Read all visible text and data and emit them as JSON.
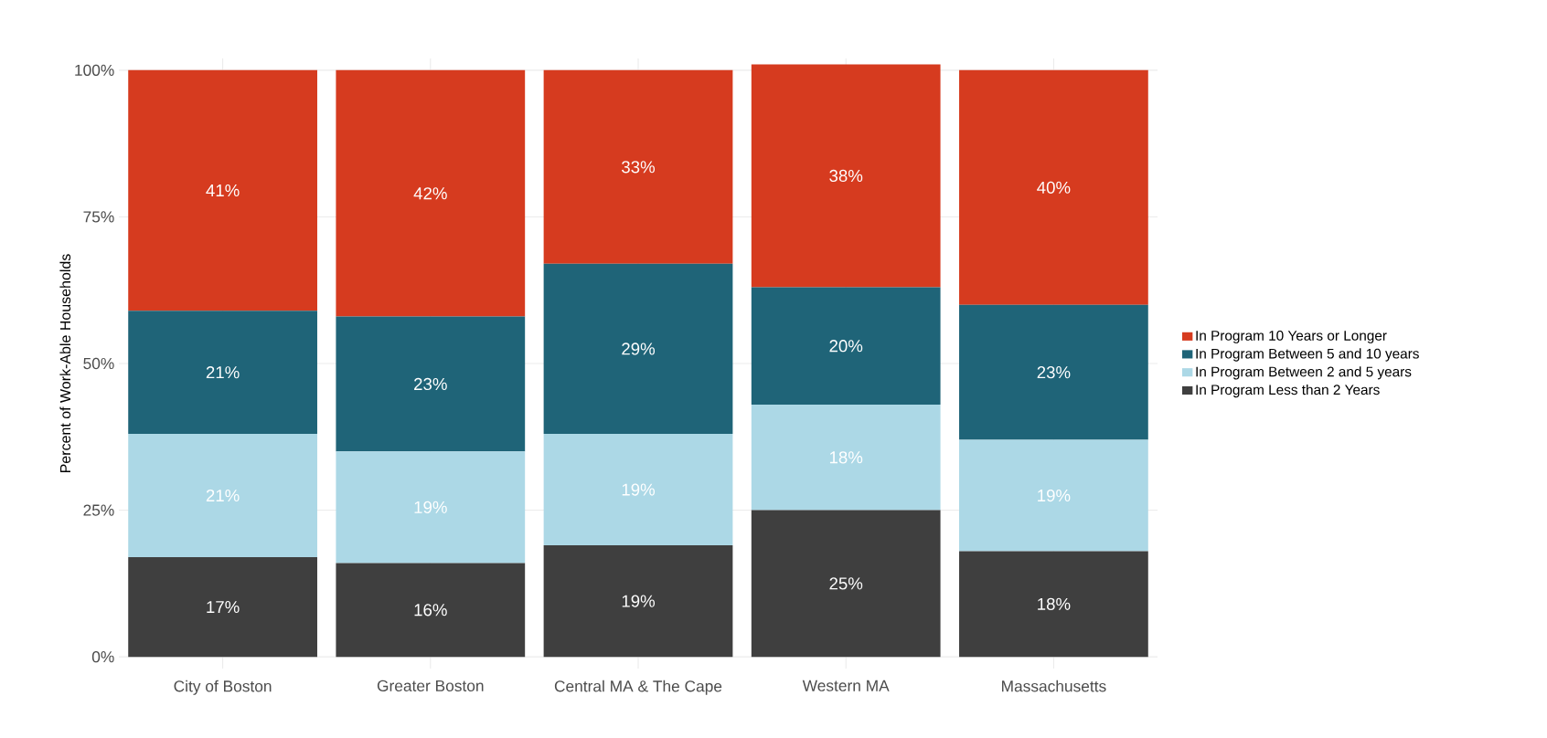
{
  "chart_data": {
    "type": "bar",
    "stacked": true,
    "ylabel": "Percent of Work-Able Households",
    "categories": [
      "City of Boston",
      "Greater Boston",
      "Central MA & The Cape",
      "Western MA",
      "Massachusetts"
    ],
    "series": [
      {
        "name": "In Program Less than 2 Years",
        "color": "#3f3f3f",
        "values": [
          17,
          16,
          19,
          25,
          18
        ],
        "value_labels": [
          "17%",
          "16%",
          "19%",
          "25%",
          "18%"
        ]
      },
      {
        "name": "In Program Between 2 and 5 years",
        "color": "#acd8e6",
        "values": [
          21,
          19,
          19,
          18,
          19
        ],
        "value_labels": [
          "21%",
          "19%",
          "19%",
          "18%",
          "19%"
        ]
      },
      {
        "name": "In Program Between 5 and 10 years",
        "color": "#1f6478",
        "values": [
          21,
          23,
          29,
          20,
          23
        ],
        "value_labels": [
          "21%",
          "23%",
          "29%",
          "20%",
          "23%"
        ]
      },
      {
        "name": "In Program 10 Years or Longer",
        "color": "#d63b1f",
        "values": [
          41,
          42,
          33,
          38,
          40
        ],
        "value_labels": [
          "41%",
          "42%",
          "33%",
          "38%",
          "40%"
        ]
      }
    ],
    "ylim": [
      -2,
      102
    ],
    "yticks": [
      {
        "value": 0,
        "label": "0%"
      },
      {
        "value": 25,
        "label": "25%"
      },
      {
        "value": 50,
        "label": "50%"
      },
      {
        "value": 75,
        "label": "75%"
      },
      {
        "value": 100,
        "label": "100%"
      }
    ],
    "grid": true,
    "legend": "right"
  }
}
